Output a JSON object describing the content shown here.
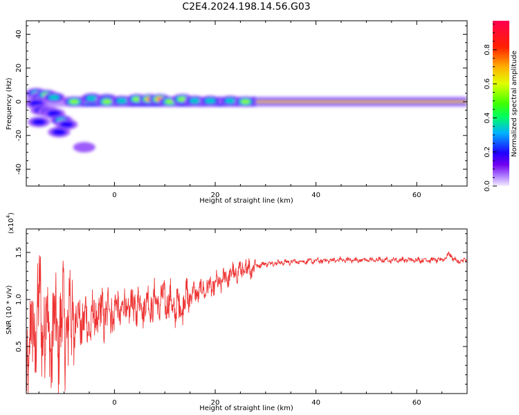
{
  "title": "C2E4.2024.198.14.56.G03",
  "chart_data": [
    {
      "type": "heatmap",
      "xlabel": "Height of straight line (km)",
      "ylabel": "Frequency (Hz)",
      "xlim": [
        -17.5,
        70
      ],
      "ylim": [
        -50,
        48
      ],
      "x_ticks": [
        0,
        20,
        40,
        60
      ],
      "y_ticks": [
        -40,
        -20,
        0,
        20,
        40
      ],
      "colorbar": {
        "label": "Normalized spectral amplitude",
        "range": [
          0,
          0.97
        ],
        "ticks": [
          "0.0",
          "0.2",
          "0.4",
          "0.6",
          "0.8"
        ]
      },
      "blobs": [
        {
          "x": -15.5,
          "y": 5,
          "amp": 0.45
        },
        {
          "x": -14.5,
          "y": 3,
          "amp": 0.35
        },
        {
          "x": -13.5,
          "y": 4,
          "amp": 0.55
        },
        {
          "x": -12,
          "y": 2.5,
          "amp": 0.45
        },
        {
          "x": -15.5,
          "y": -1,
          "amp": 0.25
        },
        {
          "x": -14.5,
          "y": -5,
          "amp": 0.2
        },
        {
          "x": -15,
          "y": -12,
          "amp": 0.25
        },
        {
          "x": -13,
          "y": -6,
          "amp": 0.2
        },
        {
          "x": -12,
          "y": -7,
          "amp": 0.25
        },
        {
          "x": -10.5,
          "y": -11,
          "amp": 0.35
        },
        {
          "x": -9.5,
          "y": -13.5,
          "amp": 0.25
        },
        {
          "x": -11,
          "y": -18,
          "amp": 0.2
        },
        {
          "x": -6,
          "y": -27,
          "amp": 0.12
        },
        {
          "x": -8,
          "y": 0,
          "amp": 0.6
        },
        {
          "x": -4.5,
          "y": 2,
          "amp": 0.5
        },
        {
          "x": -1.5,
          "y": 1.5,
          "amp": 0.55
        },
        {
          "x": -1.5,
          "y": 0,
          "amp": 0.7
        },
        {
          "x": 1.5,
          "y": 0.5,
          "amp": 0.5
        },
        {
          "x": 4.5,
          "y": 1.5,
          "amp": 0.7
        },
        {
          "x": 7,
          "y": 1.5,
          "amp": 0.85
        },
        {
          "x": 9,
          "y": 1.5,
          "amp": 0.8
        },
        {
          "x": 11,
          "y": 0,
          "amp": 0.65
        },
        {
          "x": 13.5,
          "y": 1.5,
          "amp": 0.55
        },
        {
          "x": 16,
          "y": 0.5,
          "amp": 0.5
        },
        {
          "x": 19,
          "y": 0.5,
          "amp": 0.5
        },
        {
          "x": 23,
          "y": 0.5,
          "amp": 0.45
        },
        {
          "x": 26,
          "y": 0,
          "amp": 0.65
        }
      ]
    },
    {
      "type": "line",
      "xlabel": "Height of straight line (km)",
      "ylabel": "SNR (10 * v/v)",
      "y_multiplier_label": "(x10",
      "y_multiplier_exp": "4",
      "y_multiplier_close": ")",
      "xlim": [
        -17.5,
        70
      ],
      "ylim": [
        0,
        1.75
      ],
      "x_ticks": [
        0,
        20,
        40,
        60
      ],
      "y_ticks": [
        0.5,
        1.0,
        1.5
      ],
      "y_tick_labels": [
        "0.5",
        "1.0",
        "1.5"
      ],
      "series": [
        {
          "color": "#ee3333",
          "x": [
            -17.5,
            -15,
            -12.5,
            -10,
            -7.5,
            -5,
            -2.5,
            0,
            2.5,
            5,
            7.5,
            10,
            12.5,
            15,
            17.5,
            20,
            22.5,
            25,
            27.5,
            30,
            35,
            40,
            45,
            50,
            55,
            60,
            65,
            66.5,
            68,
            70
          ],
          "y": [
            0.3,
            0.9,
            0.6,
            0.75,
            0.8,
            0.75,
            0.85,
            0.9,
            0.9,
            0.95,
            0.95,
            1.0,
            0.9,
            1.05,
            1.1,
            1.15,
            1.25,
            1.3,
            1.35,
            1.38,
            1.4,
            1.41,
            1.42,
            1.42,
            1.42,
            1.42,
            1.42,
            1.48,
            1.4,
            1.42
          ]
        }
      ]
    }
  ]
}
